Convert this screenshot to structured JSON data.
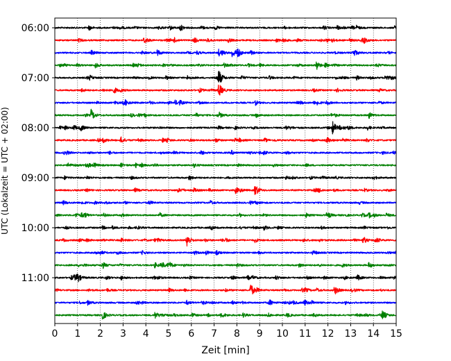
{
  "chart_data": {
    "type": "line",
    "title": "",
    "xlabel": "Zeit  [min]",
    "ylabel": "UTC (Lokalzeit = UTC + 02:00)",
    "xlim": [
      0,
      15
    ],
    "x_ticks": [
      "0",
      "1",
      "2",
      "3",
      "4",
      "5",
      "6",
      "7",
      "8",
      "9",
      "10",
      "11",
      "12",
      "13",
      "14",
      "15"
    ],
    "y_ticks": [
      "06:00",
      "07:00",
      "08:00",
      "09:00",
      "10:00",
      "11:00"
    ],
    "grid": "vertical dotted at each minute",
    "trace_colors": [
      "#000000",
      "#ff0000",
      "#0000ff",
      "#008000"
    ],
    "traces": [
      {
        "start": "06:00",
        "events": [
          {
            "t": 1.5,
            "amp": 0.35
          }
        ]
      },
      {
        "start": "06:15",
        "events": [
          {
            "t": 3.9,
            "amp": 0.4
          }
        ]
      },
      {
        "start": "06:30",
        "events": [
          {
            "t": 4.5,
            "amp": 0.5
          },
          {
            "t": 7.2,
            "amp": 0.5
          },
          {
            "t": 7.8,
            "amp": 0.6
          },
          {
            "t": 8.0,
            "amp": 0.9
          },
          {
            "t": 13.1,
            "amp": 0.4
          }
        ]
      },
      {
        "start": "06:45",
        "events": [
          {
            "t": 11.5,
            "amp": 0.7
          }
        ]
      },
      {
        "start": "07:00",
        "events": [
          {
            "t": 7.2,
            "amp": 1.1
          }
        ]
      },
      {
        "start": "07:15",
        "events": [
          {
            "t": 7.2,
            "amp": 0.9
          }
        ]
      },
      {
        "start": "07:30",
        "events": []
      },
      {
        "start": "07:45",
        "events": [
          {
            "t": 1.6,
            "amp": 0.9
          },
          {
            "t": 13.8,
            "amp": 0.5
          }
        ]
      },
      {
        "start": "08:00",
        "events": [
          {
            "t": 12.2,
            "amp": 1.1
          }
        ]
      },
      {
        "start": "08:15",
        "events": [
          {
            "t": 2.9,
            "amp": 0.3
          }
        ]
      },
      {
        "start": "08:30",
        "events": []
      },
      {
        "start": "08:45",
        "events": []
      },
      {
        "start": "09:00",
        "events": [
          {
            "t": 5.9,
            "amp": 0.4
          }
        ]
      },
      {
        "start": "09:15",
        "events": [
          {
            "t": 8.8,
            "amp": 1.0
          }
        ]
      },
      {
        "start": "09:30",
        "events": []
      },
      {
        "start": "09:45",
        "events": [
          {
            "t": 4.6,
            "amp": 0.35
          },
          {
            "t": 13.8,
            "amp": 0.4
          }
        ]
      },
      {
        "start": "10:00",
        "events": [
          {
            "t": 3.6,
            "amp": 0.3
          },
          {
            "t": 9.2,
            "amp": 0.35
          }
        ]
      },
      {
        "start": "10:15",
        "events": [
          {
            "t": 5.8,
            "amp": 1.1
          }
        ]
      },
      {
        "start": "10:30",
        "events": []
      },
      {
        "start": "10:45",
        "events": [
          {
            "t": 4.4,
            "amp": 0.4
          },
          {
            "t": 13.8,
            "amp": 0.45
          }
        ]
      },
      {
        "start": "11:00",
        "events": [
          {
            "t": 1.0,
            "amp": 0.5
          },
          {
            "t": 13.3,
            "amp": 0.45
          }
        ]
      },
      {
        "start": "11:15",
        "events": [
          {
            "t": 8.6,
            "amp": 1.1
          }
        ]
      },
      {
        "start": "11:30",
        "events": [
          {
            "t": 3.6,
            "amp": 0.3
          }
        ]
      },
      {
        "start": "11:45",
        "events": [
          {
            "t": 2.1,
            "amp": 0.7
          },
          {
            "t": 4.4,
            "amp": 0.55
          },
          {
            "t": 14.4,
            "amp": 0.7
          }
        ]
      }
    ]
  }
}
